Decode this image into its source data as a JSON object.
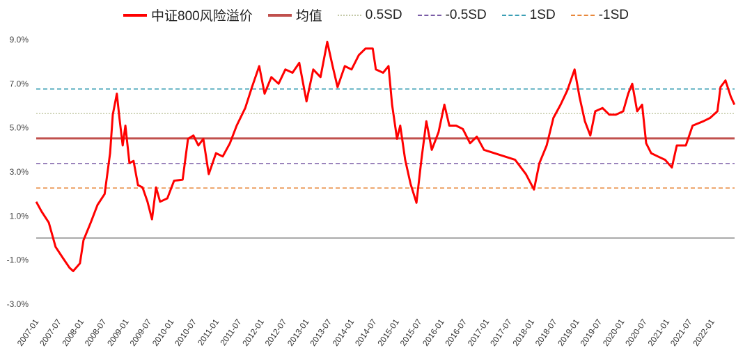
{
  "chart_data": {
    "type": "line",
    "title": "",
    "xlabel": "",
    "ylabel": "",
    "ylim": [
      -3.0,
      9.0
    ],
    "xlim": [
      2007.0,
      2022.5
    ],
    "yticks": [
      "9.0%",
      "7.0%",
      "5.0%",
      "3.0%",
      "1.0%",
      "-1.0%",
      "-3.0%"
    ],
    "ytick_values": [
      9,
      7,
      5,
      3,
      1,
      -1,
      -3
    ],
    "xticks": [
      "2007-01",
      "2007-07",
      "2008-01",
      "2008-07",
      "2009-01",
      "2009-07",
      "2010-01",
      "2010-07",
      "2011-01",
      "2011-07",
      "2012-01",
      "2012-07",
      "2013-01",
      "2013-07",
      "2014-01",
      "2014-07",
      "2015-01",
      "2015-07",
      "2016-01",
      "2016-07",
      "2017-01",
      "2017-07",
      "2018-01",
      "2018-07",
      "2019-01",
      "2019-07",
      "2020-01",
      "2020-07",
      "2021-01",
      "2021-07",
      "2022-01"
    ],
    "legend_position": "top-center",
    "grid": false,
    "series": [
      {
        "name": "中证800风险溢价",
        "color": "#ff0000",
        "style": "solid",
        "x": [
          2007.0,
          2007.12,
          2007.28,
          2007.43,
          2007.59,
          2007.74,
          2007.82,
          2007.97,
          2008.05,
          2008.21,
          2008.36,
          2008.52,
          2008.64,
          2008.7,
          2008.79,
          2008.85,
          2008.92,
          2008.98,
          2009.07,
          2009.16,
          2009.26,
          2009.36,
          2009.47,
          2009.57,
          2009.66,
          2009.75,
          2009.91,
          2010.06,
          2010.25,
          2010.37,
          2010.49,
          2010.6,
          2010.71,
          2010.83,
          2010.99,
          2011.14,
          2011.3,
          2011.45,
          2011.64,
          2011.79,
          2011.95,
          2012.07,
          2012.22,
          2012.38,
          2012.53,
          2012.69,
          2012.84,
          2013.0,
          2013.15,
          2013.31,
          2013.46,
          2013.58,
          2013.69,
          2013.85,
          2014.0,
          2014.16,
          2014.31,
          2014.47,
          2014.54,
          2014.7,
          2014.82,
          2014.9,
          2015.01,
          2015.08,
          2015.19,
          2015.31,
          2015.44,
          2015.55,
          2015.66,
          2015.78,
          2015.93,
          2016.06,
          2016.17,
          2016.32,
          2016.47,
          2016.63,
          2016.78,
          2016.94,
          2017.17,
          2017.4,
          2017.63,
          2017.87,
          2018.05,
          2018.17,
          2018.33,
          2018.48,
          2018.64,
          2018.79,
          2018.95,
          2019.06,
          2019.18,
          2019.3,
          2019.41,
          2019.57,
          2019.72,
          2019.87,
          2020.03,
          2020.14,
          2020.23,
          2020.34,
          2020.45,
          2020.54,
          2020.65,
          2020.8,
          2020.96,
          2021.11,
          2021.22,
          2021.42,
          2021.57,
          2021.81,
          2021.96,
          2022.12,
          2022.19,
          2022.3,
          2022.42,
          2022.5
        ],
        "y": [
          1.65,
          1.2,
          0.7,
          -0.4,
          -0.9,
          -1.35,
          -1.5,
          -1.15,
          -0.1,
          0.7,
          1.5,
          2.0,
          3.85,
          5.6,
          6.55,
          5.4,
          4.2,
          5.1,
          3.4,
          3.5,
          2.4,
          2.3,
          1.65,
          0.85,
          2.3,
          1.65,
          1.8,
          2.6,
          2.65,
          4.5,
          4.65,
          4.2,
          4.5,
          2.9,
          3.85,
          3.7,
          4.3,
          5.1,
          5.9,
          6.85,
          7.8,
          6.55,
          7.3,
          7.0,
          7.65,
          7.5,
          7.95,
          6.2,
          7.65,
          7.3,
          8.9,
          7.8,
          6.85,
          7.8,
          7.65,
          8.3,
          8.6,
          8.6,
          7.65,
          7.5,
          7.8,
          6.05,
          4.5,
          5.1,
          3.55,
          2.45,
          1.6,
          3.55,
          5.3,
          4.0,
          4.8,
          6.05,
          5.1,
          5.1,
          4.95,
          4.3,
          4.6,
          4.0,
          3.85,
          3.7,
          3.55,
          2.9,
          2.2,
          3.4,
          4.2,
          5.45,
          6.05,
          6.7,
          7.65,
          6.4,
          5.3,
          4.65,
          5.75,
          5.9,
          5.6,
          5.6,
          5.75,
          6.55,
          7.0,
          5.75,
          6.05,
          4.3,
          3.85,
          3.7,
          3.55,
          3.2,
          4.2,
          4.2,
          5.1,
          5.3,
          5.45,
          5.75,
          6.85,
          7.15,
          6.4,
          6.05
        ]
      },
      {
        "name": "均值",
        "color": "#c0504d",
        "style": "solid",
        "constant": 4.52
      },
      {
        "name": "0.5SD",
        "color": "#c4c9a8",
        "style": "dotted",
        "constant": 5.65
      },
      {
        "name": "-0.5SD",
        "color": "#7a5ca6",
        "style": "dashed",
        "constant": 3.38
      },
      {
        "name": "1SD",
        "color": "#3b9fb5",
        "style": "dashed",
        "constant": 6.76
      },
      {
        "name": "-1SD",
        "color": "#e8873a",
        "style": "dashed",
        "constant": 2.27
      }
    ]
  }
}
